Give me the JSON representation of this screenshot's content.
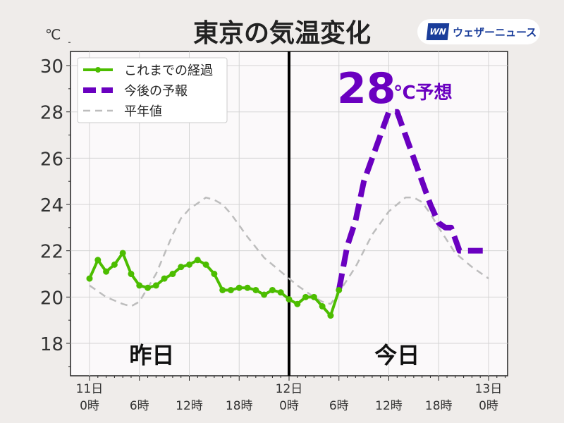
{
  "title": "東京の気温変化",
  "logo": {
    "mark": "WN",
    "text": "ウェザーニュース"
  },
  "chart_data": {
    "type": "line",
    "unit_label": "℃",
    "ylim": [
      16.8,
      31.2
    ],
    "xlim_hours": [
      -0.8,
      50
    ],
    "yticks": [
      18,
      20,
      22,
      24,
      26,
      28,
      30
    ],
    "ytick_labels": [
      "18",
      "20",
      "22",
      "24",
      "26",
      "28",
      "30"
    ],
    "xticks": [
      {
        "hour": 0,
        "date": "11日",
        "time": "0時"
      },
      {
        "hour": 6,
        "date": "",
        "time": "6時"
      },
      {
        "hour": 12,
        "date": "",
        "time": "12時"
      },
      {
        "hour": 18,
        "date": "",
        "time": "18時"
      },
      {
        "hour": 24,
        "date": "12日",
        "time": "0時"
      },
      {
        "hour": 30,
        "date": "",
        "time": "6時"
      },
      {
        "hour": 36,
        "date": "",
        "time": "12時"
      },
      {
        "hour": 42,
        "date": "",
        "time": "18時"
      },
      {
        "hour": 48,
        "date": "13日",
        "time": "0時"
      }
    ],
    "grid": true,
    "legend_placement": "top-left",
    "divider_hour": 24,
    "day_labels": [
      {
        "hour": 7.5,
        "text": "昨日"
      },
      {
        "hour": 37,
        "text": "今日"
      }
    ],
    "annotation": {
      "big": "28",
      "small": "℃予想",
      "color": "#6a00c0"
    },
    "series": [
      {
        "name": "これまでの経過",
        "color": "#4cbd00",
        "style": "solid-markers",
        "x": [
          0,
          1,
          2,
          3,
          4,
          5,
          6,
          7,
          8,
          9,
          10,
          11,
          12,
          13,
          14,
          15,
          16,
          17,
          18,
          19,
          20,
          21,
          22,
          23,
          24,
          25,
          26,
          27,
          28,
          29,
          30
        ],
        "values": [
          20.8,
          21.6,
          21.1,
          21.4,
          21.9,
          21.0,
          20.5,
          20.4,
          20.5,
          20.8,
          21.0,
          21.3,
          21.4,
          21.6,
          21.4,
          21.0,
          20.3,
          20.3,
          20.4,
          20.4,
          20.3,
          20.1,
          20.3,
          20.2,
          19.9,
          19.7,
          20.0,
          20.0,
          19.6,
          19.2,
          20.3
        ]
      },
      {
        "name": "今後の予報",
        "color": "#6a00c0",
        "style": "thick-dash",
        "x": [
          30,
          31,
          32,
          33,
          34,
          35,
          36,
          37,
          38,
          39,
          40,
          41,
          42,
          42.8,
          43.5,
          44.5,
          45,
          47.3
        ],
        "values": [
          20.3,
          22.2,
          23.3,
          25.0,
          26.0,
          27.0,
          28.0,
          28.0,
          27.0,
          26.0,
          25.0,
          24.0,
          23.2,
          23.0,
          23.0,
          22.0,
          22.0,
          22.0
        ]
      },
      {
        "name": "平年値",
        "color": "#bdbdbd",
        "style": "dashed",
        "x": [
          0,
          2,
          4,
          5,
          6,
          8,
          10,
          11,
          12,
          14,
          15,
          16,
          17,
          19,
          21,
          23,
          25,
          27,
          28,
          29,
          30,
          32,
          34,
          36,
          38,
          39,
          40,
          41,
          42,
          44,
          46,
          48
        ],
        "values": [
          20.5,
          20.0,
          19.7,
          19.6,
          19.8,
          21.0,
          22.7,
          23.4,
          23.8,
          24.3,
          24.2,
          24.0,
          23.6,
          22.6,
          21.7,
          21.1,
          20.5,
          20.0,
          19.8,
          19.7,
          20.2,
          21.3,
          22.7,
          23.7,
          24.3,
          24.3,
          24.1,
          23.6,
          23.0,
          21.9,
          21.3,
          20.8
        ]
      }
    ]
  }
}
